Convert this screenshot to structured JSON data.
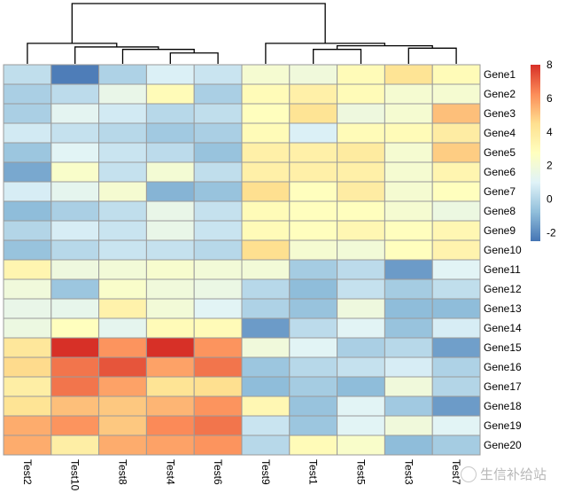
{
  "chart_data": {
    "type": "heatmap",
    "title": "",
    "columns": [
      "Test2",
      "Test10",
      "Test8",
      "Test4",
      "Test6",
      "Test9",
      "Test1",
      "Test5",
      "Test3",
      "Test7"
    ],
    "rows": [
      "Gene1",
      "Gene2",
      "Gene3",
      "Gene4",
      "Gene5",
      "Gene6",
      "Gene7",
      "Gene8",
      "Gene9",
      "Gene10",
      "Gene11",
      "Gene12",
      "Gene13",
      "Gene14",
      "Gene15",
      "Gene16",
      "Gene17",
      "Gene18",
      "Gene19",
      "Gene20"
    ],
    "values": [
      [
        0.3,
        -2.3,
        -0.1,
        0.9,
        0.5,
        2.2,
        1.9,
        3.0,
        4.3,
        3.0
      ],
      [
        -0.2,
        0.2,
        1.5,
        3.0,
        -0.2,
        3.0,
        3.6,
        3.0,
        2.2,
        2.2
      ],
      [
        -0.2,
        1.2,
        0.7,
        0.1,
        0.3,
        2.8,
        4.3,
        1.8,
        2.2,
        5.2
      ],
      [
        0.7,
        0.4,
        0.1,
        -0.4,
        -0.2,
        3.0,
        0.9,
        3.0,
        3.0,
        3.8
      ],
      [
        -0.5,
        1.1,
        0.5,
        0.2,
        -0.6,
        3.6,
        3.6,
        3.9,
        2.2,
        4.9
      ],
      [
        -1.3,
        2.4,
        0.4,
        2.1,
        0.3,
        3.6,
        3.6,
        3.6,
        2.2,
        3.3
      ],
      [
        0.8,
        1.3,
        2.2,
        -1.0,
        -0.6,
        4.5,
        2.8,
        3.8,
        2.2,
        2.8
      ],
      [
        -0.8,
        -0.2,
        0.3,
        1.5,
        0.4,
        3.0,
        2.8,
        2.8,
        2.2,
        1.7
      ],
      [
        0.0,
        0.8,
        0.5,
        1.5,
        0.5,
        3.0,
        2.8,
        3.2,
        2.8,
        3.2
      ],
      [
        -0.6,
        0.1,
        0.5,
        0.4,
        0.1,
        4.5,
        2.2,
        2.0,
        2.8,
        3.4
      ],
      [
        3.3,
        1.8,
        2.0,
        2.3,
        2.0,
        2.0,
        -0.3,
        0.2,
        -1.6,
        1.1
      ],
      [
        1.9,
        -0.5,
        2.4,
        1.9,
        1.6,
        0.1,
        -0.8,
        0.4,
        -0.3,
        0.3
      ],
      [
        1.5,
        1.4,
        3.5,
        2.0,
        1.1,
        -0.1,
        -0.6,
        1.8,
        -0.8,
        -0.8
      ],
      [
        1.7,
        2.8,
        1.3,
        3.0,
        3.0,
        -1.6,
        0.2,
        1.1,
        -0.6,
        0.8
      ],
      [
        4.1,
        8.0,
        6.1,
        8.0,
        6.1,
        1.9,
        1.1,
        -0.2,
        0.1,
        -1.5
      ],
      [
        4.6,
        6.7,
        7.3,
        5.8,
        6.7,
        -0.5,
        0.1,
        0.4,
        0.8,
        -0.1
      ],
      [
        3.7,
        6.7,
        5.8,
        4.3,
        4.5,
        -0.8,
        -0.3,
        -0.8,
        1.9,
        0.0
      ],
      [
        4.3,
        5.2,
        5.0,
        5.4,
        6.1,
        3.2,
        -0.6,
        1.1,
        -0.4,
        -1.6
      ],
      [
        5.6,
        6.1,
        5.0,
        6.3,
        6.7,
        0.5,
        -0.5,
        1.1,
        1.9,
        1.1
      ],
      [
        5.6,
        3.7,
        5.6,
        5.8,
        6.1,
        0.1,
        3.0,
        2.4,
        -0.8,
        -0.3
      ]
    ],
    "colorscale": {
      "min": -2.5,
      "max": 8,
      "colors": [
        "#4575b4",
        "#91bfdb",
        "#e0f3f8",
        "#ffffbf",
        "#fee090",
        "#fc8d59",
        "#d73027"
      ],
      "ticks": [
        -2,
        0,
        2,
        4,
        6,
        8
      ],
      "tick_labels": [
        "-2",
        "0",
        "2",
        "4",
        "6",
        "8"
      ]
    },
    "column_dendrogram": {
      "order": [
        "Test2",
        "Test10",
        "Test8",
        "Test4",
        "Test6",
        "Test9",
        "Test1",
        "Test5",
        "Test3",
        "Test7"
      ],
      "merges": [
        {
          "left": "Test4",
          "right": "Test6",
          "height": 0.18
        },
        {
          "left": "Test8",
          "right": [
            "Test4",
            "Test6"
          ],
          "height": 0.24
        },
        {
          "left": "Test10",
          "right": [
            "Test8",
            "Test4",
            "Test6"
          ],
          "height": 0.28
        },
        {
          "left": "Test2",
          "right": [
            "Test10",
            "Test8",
            "Test4",
            "Test6"
          ],
          "height": 0.34
        },
        {
          "left": "Test1",
          "right": "Test5",
          "height": 0.24
        },
        {
          "left": "Test3",
          "right": "Test7",
          "height": 0.26
        },
        {
          "left": [
            "Test1",
            "Test5"
          ],
          "right": [
            "Test3",
            "Test7"
          ],
          "height": 0.3
        },
        {
          "left": "Test9",
          "right": [
            "Test1",
            "Test5",
            "Test3",
            "Test7"
          ],
          "height": 0.34
        },
        {
          "left": [
            "Test2",
            "Test10",
            "Test8",
            "Test4",
            "Test6"
          ],
          "right": [
            "Test9",
            "Test1",
            "Test5",
            "Test3",
            "Test7"
          ],
          "height": 1.0
        }
      ]
    },
    "legend_position": "right",
    "grid": false
  },
  "watermark": {
    "text": "生信补给站",
    "icon": "wechat-icon"
  }
}
